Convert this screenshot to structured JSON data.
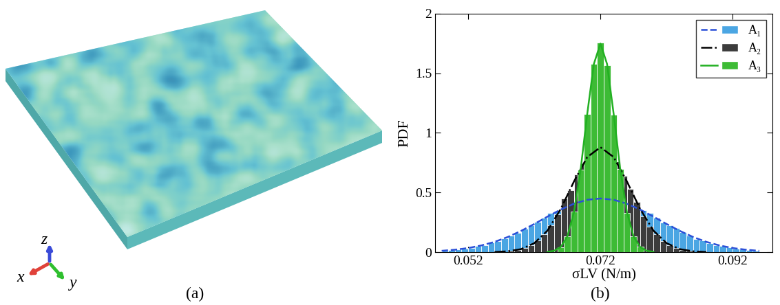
{
  "figure": {
    "panel_labels": [
      "(a)",
      "(b)"
    ],
    "axis_triad": {
      "x": "x",
      "y": "y",
      "z": "z"
    }
  },
  "chart_data": {
    "type": "histogram",
    "x_label": "σLV (N/m)",
    "y_label": "PDF",
    "xlim": [
      0.047,
      0.098
    ],
    "xticks": [
      0.052,
      0.072,
      0.092
    ],
    "ylim": [
      0,
      2
    ],
    "yticks": [
      0,
      0.5,
      1,
      1.5,
      2
    ],
    "legend": "upper right",
    "series": [
      {
        "name": "A₁",
        "color": "#4ba6e3",
        "bins": [
          0.048,
          0.049,
          0.05,
          0.051,
          0.052,
          0.053,
          0.054,
          0.055,
          0.056,
          0.057,
          0.058,
          0.059,
          0.06,
          0.061,
          0.062,
          0.063,
          0.064,
          0.065,
          0.066,
          0.067,
          0.068,
          0.069,
          0.07,
          0.071,
          0.072,
          0.073,
          0.074,
          0.075,
          0.076,
          0.077,
          0.078,
          0.079,
          0.08,
          0.081,
          0.082,
          0.083,
          0.084,
          0.085,
          0.086,
          0.087,
          0.088,
          0.089,
          0.09,
          0.091,
          0.092,
          0.093,
          0.094,
          0.095,
          0.096
        ],
        "counts": [
          0.012,
          0.018,
          0.024,
          0.031,
          0.036,
          0.05,
          0.06,
          0.08,
          0.095,
          0.118,
          0.14,
          0.16,
          0.195,
          0.225,
          0.255,
          0.29,
          0.33,
          0.345,
          0.375,
          0.39,
          0.42,
          0.425,
          0.44,
          0.455,
          0.445,
          0.45,
          0.43,
          0.42,
          0.405,
          0.38,
          0.35,
          0.33,
          0.29,
          0.25,
          0.225,
          0.2,
          0.165,
          0.14,
          0.112,
          0.098,
          0.075,
          0.06,
          0.052,
          0.038,
          0.03,
          0.022,
          0.015,
          0.01
        ],
        "fit": {
          "color": "#2a4fd8",
          "line_style": "dashed",
          "x": [
            0.048,
            0.05,
            0.052,
            0.054,
            0.056,
            0.058,
            0.06,
            0.062,
            0.064,
            0.066,
            0.068,
            0.07,
            0.072,
            0.074,
            0.076,
            0.078,
            0.08,
            0.082,
            0.084,
            0.086,
            0.088,
            0.09,
            0.092,
            0.094,
            0.096
          ],
          "values": [
            0.011,
            0.02,
            0.034,
            0.056,
            0.086,
            0.127,
            0.178,
            0.236,
            0.298,
            0.357,
            0.406,
            0.439,
            0.45,
            0.439,
            0.406,
            0.357,
            0.298,
            0.236,
            0.178,
            0.127,
            0.086,
            0.056,
            0.034,
            0.02,
            0.011
          ]
        }
      },
      {
        "name": "A₂",
        "color": "#3c3c3c",
        "bins": [
          0.058,
          0.059,
          0.06,
          0.061,
          0.062,
          0.063,
          0.064,
          0.065,
          0.066,
          0.067,
          0.068,
          0.069,
          0.07,
          0.071,
          0.072,
          0.073,
          0.074,
          0.075,
          0.076,
          0.077,
          0.078,
          0.079,
          0.08,
          0.081,
          0.082,
          0.083,
          0.084,
          0.085,
          0.086
        ],
        "counts": [
          0.01,
          0.018,
          0.036,
          0.06,
          0.098,
          0.15,
          0.225,
          0.315,
          0.45,
          0.52,
          0.65,
          0.745,
          0.835,
          0.87,
          0.88,
          0.82,
          0.76,
          0.64,
          0.53,
          0.42,
          0.3,
          0.215,
          0.15,
          0.092,
          0.055,
          0.035,
          0.018,
          0.01
        ],
        "fit": {
          "color": "#000000",
          "line_style": "dashdot",
          "x": [
            0.056,
            0.058,
            0.06,
            0.062,
            0.064,
            0.066,
            0.068,
            0.07,
            0.072,
            0.074,
            0.076,
            0.078,
            0.08,
            0.082,
            0.084,
            0.086,
            0.088
          ],
          "values": [
            0.001,
            0.007,
            0.025,
            0.075,
            0.181,
            0.362,
            0.593,
            0.797,
            0.88,
            0.797,
            0.593,
            0.362,
            0.181,
            0.075,
            0.025,
            0.007,
            0.001
          ]
        }
      },
      {
        "name": "A₃",
        "color": "#3dbb35",
        "bins": [
          0.0655,
          0.0665,
          0.0675,
          0.0685,
          0.0695,
          0.0705,
          0.0715,
          0.0725,
          0.0735,
          0.0745,
          0.0755,
          0.0765,
          0.0775,
          0.0785
        ],
        "counts": [
          0.04,
          0.13,
          0.34,
          0.69,
          1.16,
          1.58,
          1.76,
          1.57,
          1.15,
          0.7,
          0.33,
          0.135,
          0.045
        ],
        "fit": {
          "color": "#22b022",
          "line_style": "solid",
          "x": [
            0.064,
            0.065,
            0.066,
            0.067,
            0.068,
            0.069,
            0.07,
            0.071,
            0.072,
            0.073,
            0.074,
            0.075,
            0.076,
            0.077,
            0.078,
            0.079,
            0.08
          ],
          "values": [
            0.002,
            0.011,
            0.043,
            0.132,
            0.336,
            0.691,
            1.158,
            1.578,
            1.75,
            1.578,
            1.158,
            0.691,
            0.336,
            0.132,
            0.043,
            0.011,
            0.002
          ]
        }
      }
    ]
  }
}
